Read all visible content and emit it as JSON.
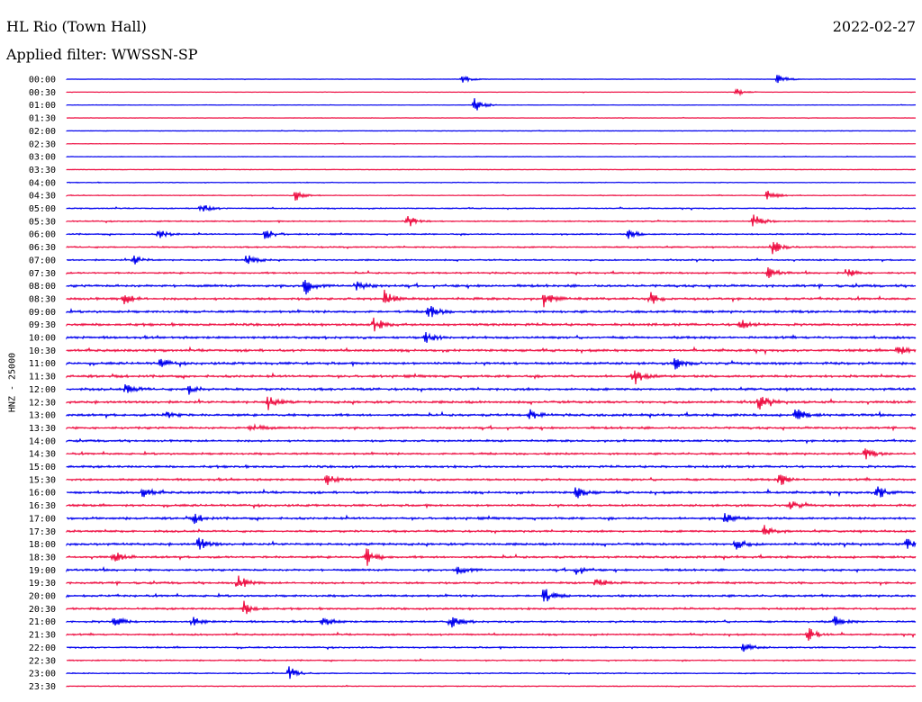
{
  "header": {
    "station": "HL Rio (Town Hall)",
    "date": "2022-02-27",
    "filter_label": "Applied filter: WWSSN-SP"
  },
  "channel_label": "HNZ - 25000",
  "colors": {
    "even_row": "#0000ee",
    "odd_row": "#ee1144",
    "background": "#ffffff"
  },
  "chart_data": {
    "type": "line",
    "title": "HL Rio (Town Hall)",
    "subtitle": "Applied filter: WWSSN-SP",
    "ylabel": "HNZ - 25000",
    "xlabel": "",
    "y_ticks": [
      "00:00",
      "00:30",
      "01:00",
      "01:30",
      "02:00",
      "02:30",
      "03:00",
      "03:30",
      "04:00",
      "04:30",
      "05:00",
      "05:30",
      "06:00",
      "06:30",
      "07:00",
      "07:30",
      "08:00",
      "08:30",
      "09:00",
      "09:30",
      "10:00",
      "10:30",
      "11:00",
      "11:30",
      "12:00",
      "12:30",
      "13:00",
      "13:30",
      "14:00",
      "14:30",
      "15:00",
      "15:30",
      "16:00",
      "16:30",
      "17:00",
      "17:30",
      "18:00",
      "18:30",
      "19:00",
      "19:30",
      "20:00",
      "20:30",
      "21:00",
      "21:30",
      "22:00",
      "22:30",
      "23:00",
      "23:30"
    ],
    "series_colors": [
      "#0000ee",
      "#ee1144"
    ],
    "noise_level": [
      0.15,
      0.18,
      0.2,
      0.2,
      0.22,
      0.22,
      0.25,
      0.3,
      0.3,
      0.35,
      0.45,
      0.5,
      0.55,
      0.6,
      0.6,
      0.7,
      1.0,
      1.0,
      1.0,
      1.0,
      1.0,
      1.0,
      1.0,
      1.0,
      1.0,
      1.0,
      1.0,
      0.9,
      0.85,
      0.85,
      0.9,
      0.9,
      0.95,
      0.9,
      0.95,
      0.85,
      0.95,
      0.9,
      0.85,
      0.85,
      0.9,
      0.8,
      0.8,
      0.7,
      0.6,
      0.5,
      0.45,
      0.35
    ],
    "events": [
      {
        "row": 0,
        "x": 513,
        "amp": 6
      },
      {
        "row": 0,
        "x": 863,
        "amp": 6
      },
      {
        "row": 1,
        "x": 818,
        "amp": 4
      },
      {
        "row": 2,
        "x": 527,
        "amp": 9
      },
      {
        "row": 9,
        "x": 328,
        "amp": 7
      },
      {
        "row": 9,
        "x": 852,
        "amp": 7
      },
      {
        "row": 10,
        "x": 223,
        "amp": 6
      },
      {
        "row": 11,
        "x": 452,
        "amp": 8
      },
      {
        "row": 11,
        "x": 837,
        "amp": 8
      },
      {
        "row": 12,
        "x": 176,
        "amp": 7
      },
      {
        "row": 12,
        "x": 295,
        "amp": 7
      },
      {
        "row": 12,
        "x": 698,
        "amp": 6
      },
      {
        "row": 13,
        "x": 857,
        "amp": 10
      },
      {
        "row": 14,
        "x": 148,
        "amp": 6
      },
      {
        "row": 14,
        "x": 274,
        "amp": 7
      },
      {
        "row": 15,
        "x": 853,
        "amp": 7
      },
      {
        "row": 15,
        "x": 940,
        "amp": 6
      },
      {
        "row": 16,
        "x": 338,
        "amp": 11
      },
      {
        "row": 16,
        "x": 395,
        "amp": 7
      },
      {
        "row": 17,
        "x": 137,
        "amp": 7
      },
      {
        "row": 17,
        "x": 427,
        "amp": 11
      },
      {
        "row": 17,
        "x": 604,
        "amp": 9
      },
      {
        "row": 17,
        "x": 722,
        "amp": 7
      },
      {
        "row": 18,
        "x": 475,
        "amp": 10
      },
      {
        "row": 19,
        "x": 414,
        "amp": 10
      },
      {
        "row": 19,
        "x": 822,
        "amp": 7
      },
      {
        "row": 20,
        "x": 473,
        "amp": 8
      },
      {
        "row": 21,
        "x": 996,
        "amp": 7
      },
      {
        "row": 22,
        "x": 178,
        "amp": 6
      },
      {
        "row": 22,
        "x": 750,
        "amp": 7
      },
      {
        "row": 23,
        "x": 703,
        "amp": 11
      },
      {
        "row": 24,
        "x": 140,
        "amp": 7
      },
      {
        "row": 24,
        "x": 211,
        "amp": 8
      },
      {
        "row": 25,
        "x": 298,
        "amp": 9
      },
      {
        "row": 25,
        "x": 843,
        "amp": 9
      },
      {
        "row": 26,
        "x": 183,
        "amp": 7
      },
      {
        "row": 26,
        "x": 588,
        "amp": 7
      },
      {
        "row": 26,
        "x": 883,
        "amp": 9
      },
      {
        "row": 27,
        "x": 279,
        "amp": 7
      },
      {
        "row": 29,
        "x": 960,
        "amp": 7
      },
      {
        "row": 31,
        "x": 362,
        "amp": 7
      },
      {
        "row": 31,
        "x": 866,
        "amp": 8
      },
      {
        "row": 32,
        "x": 158,
        "amp": 7
      },
      {
        "row": 32,
        "x": 640,
        "amp": 7
      },
      {
        "row": 32,
        "x": 974,
        "amp": 10
      },
      {
        "row": 33,
        "x": 876,
        "amp": 7
      },
      {
        "row": 34,
        "x": 216,
        "amp": 6
      },
      {
        "row": 34,
        "x": 805,
        "amp": 6
      },
      {
        "row": 35,
        "x": 849,
        "amp": 6
      },
      {
        "row": 36,
        "x": 220,
        "amp": 9
      },
      {
        "row": 36,
        "x": 817,
        "amp": 8
      },
      {
        "row": 36,
        "x": 1008,
        "amp": 8
      },
      {
        "row": 37,
        "x": 126,
        "amp": 7
      },
      {
        "row": 37,
        "x": 407,
        "amp": 10
      },
      {
        "row": 38,
        "x": 509,
        "amp": 7
      },
      {
        "row": 38,
        "x": 640,
        "amp": 6
      },
      {
        "row": 39,
        "x": 264,
        "amp": 10
      },
      {
        "row": 39,
        "x": 662,
        "amp": 7
      },
      {
        "row": 40,
        "x": 604,
        "amp": 10
      },
      {
        "row": 41,
        "x": 271,
        "amp": 8
      },
      {
        "row": 42,
        "x": 127,
        "amp": 7
      },
      {
        "row": 42,
        "x": 213,
        "amp": 6
      },
      {
        "row": 42,
        "x": 358,
        "amp": 6
      },
      {
        "row": 42,
        "x": 500,
        "amp": 9
      },
      {
        "row": 42,
        "x": 927,
        "amp": 6
      },
      {
        "row": 43,
        "x": 897,
        "amp": 10
      },
      {
        "row": 44,
        "x": 826,
        "amp": 6
      },
      {
        "row": 46,
        "x": 321,
        "amp": 8
      }
    ]
  }
}
